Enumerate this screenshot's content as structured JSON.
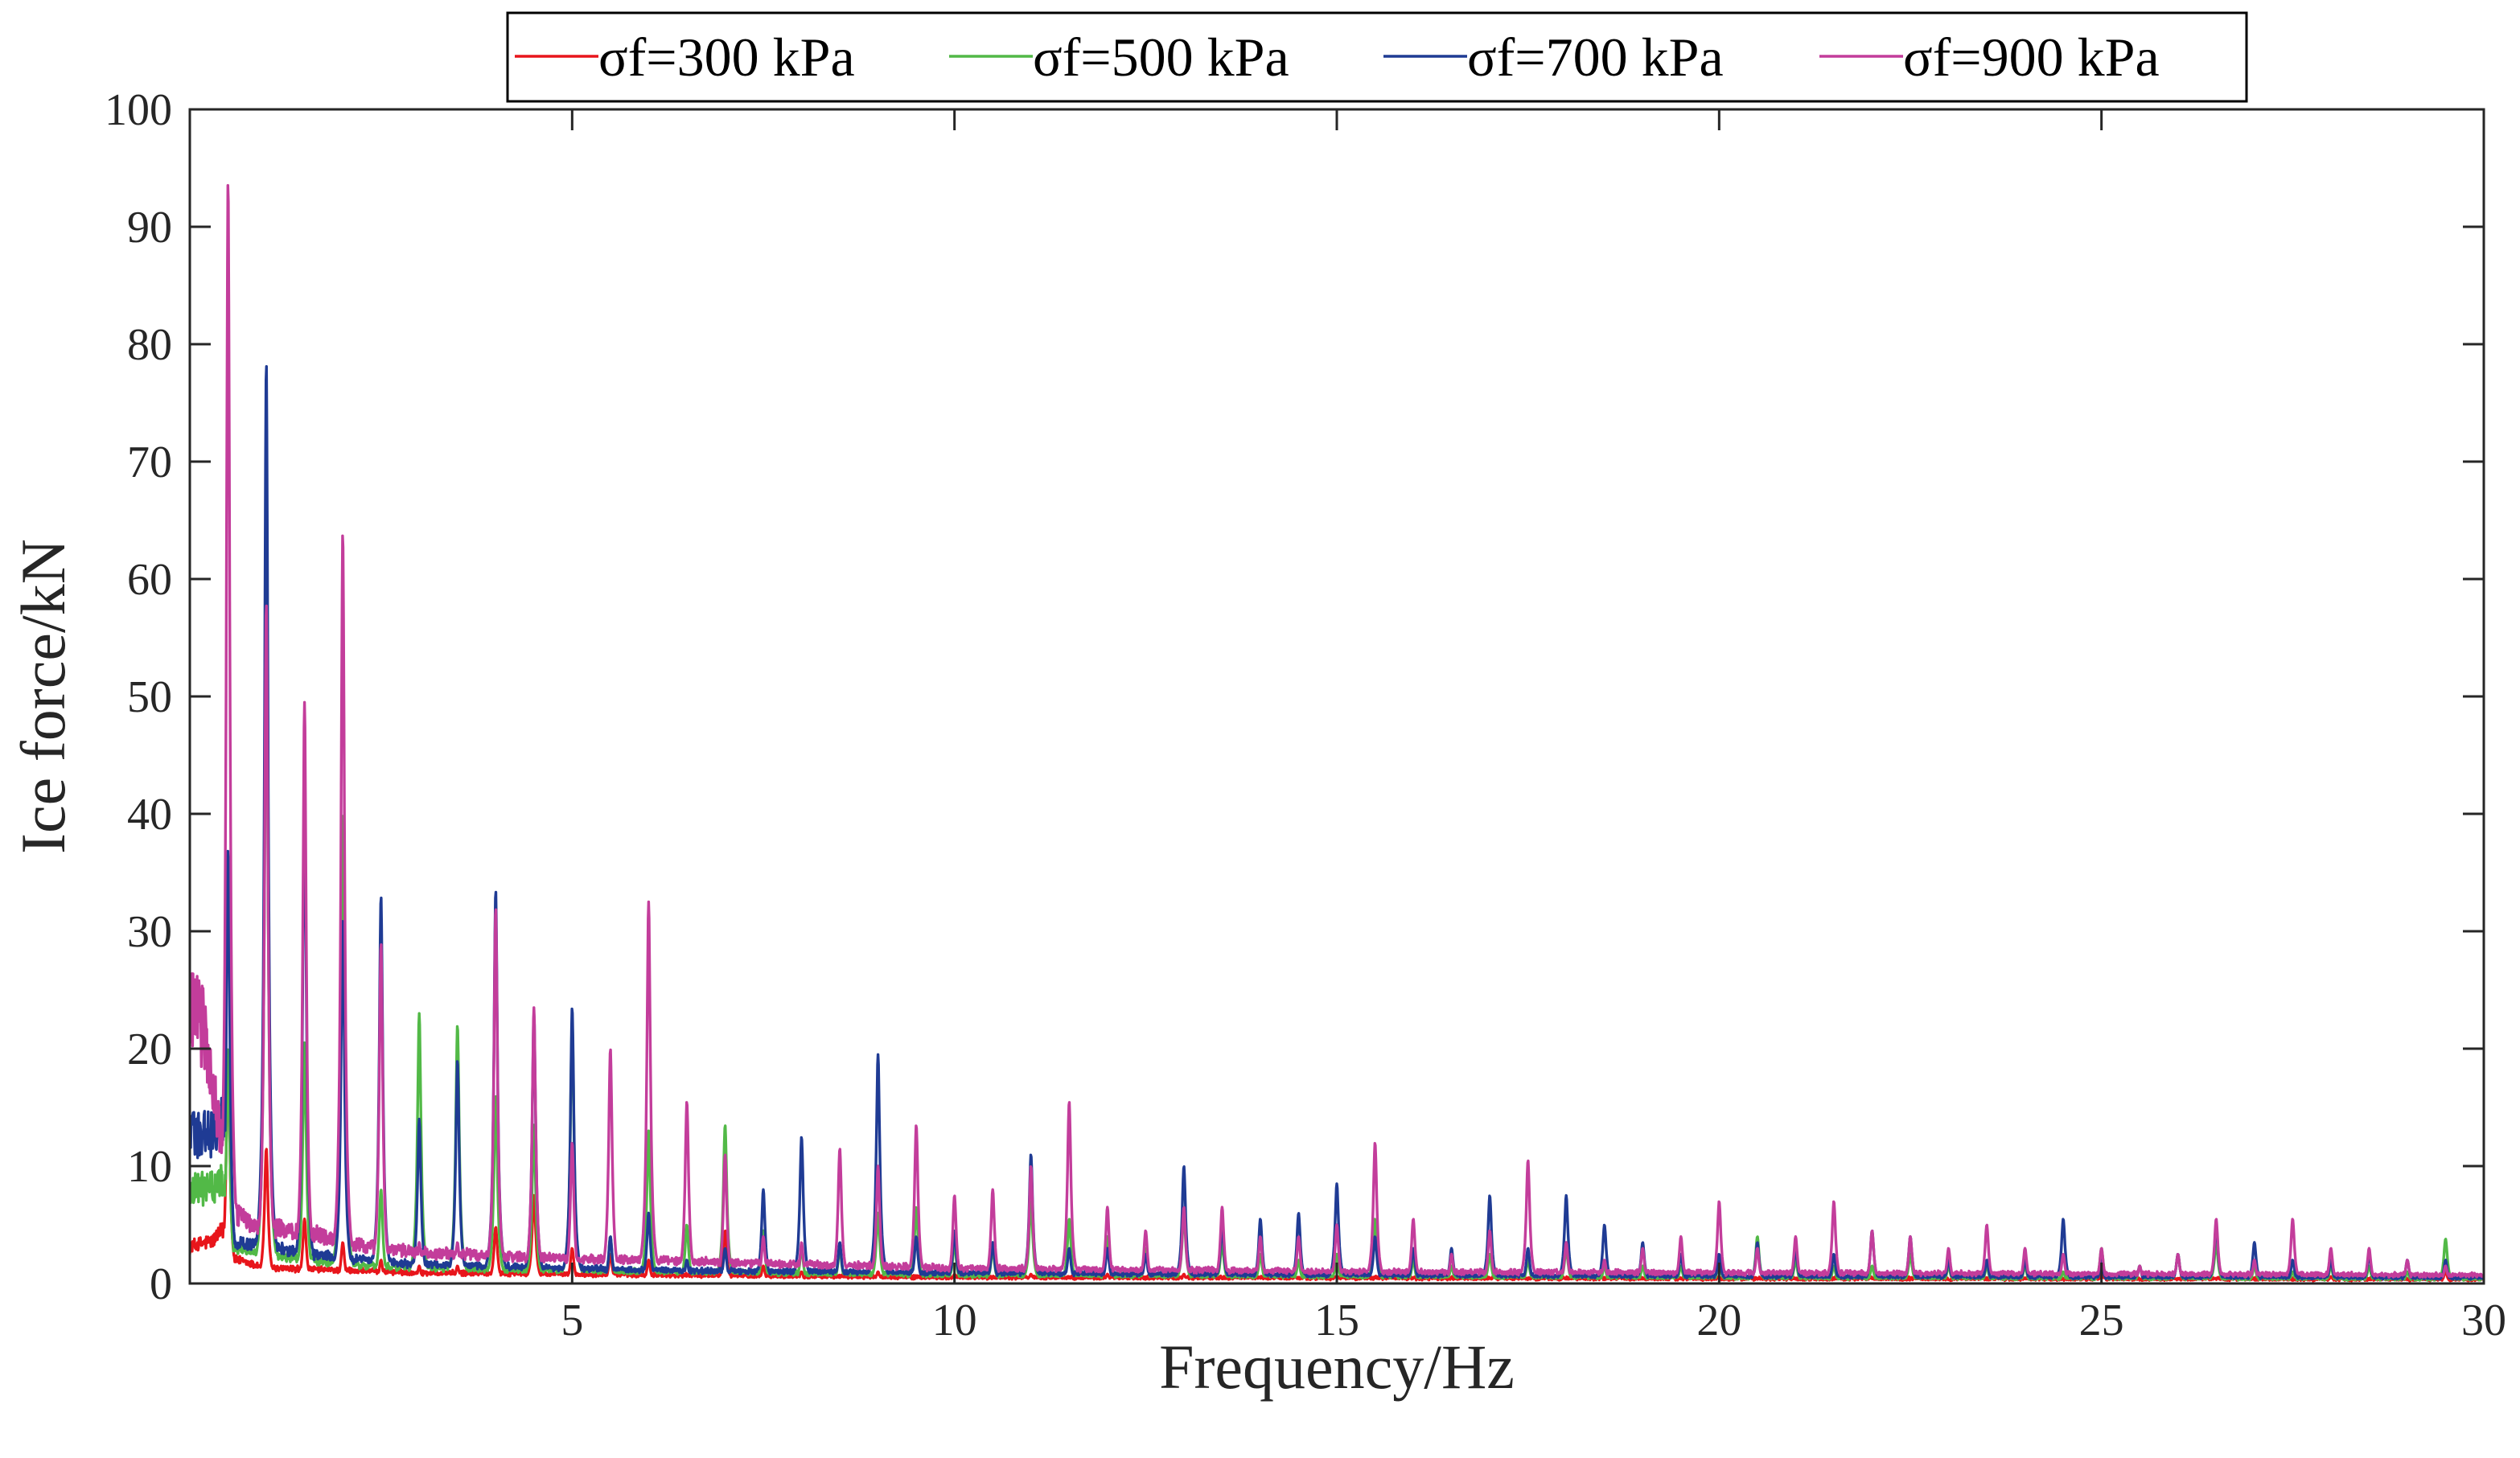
{
  "chart_data": {
    "type": "line",
    "title": "",
    "xlabel": "Frequency/Hz",
    "ylabel": "Ice  force/kN",
    "xlim": [
      0,
      30
    ],
    "ylim": [
      0,
      100
    ],
    "x_ticks": [
      5,
      10,
      15,
      20,
      25,
      30
    ],
    "y_ticks": [
      0,
      10,
      20,
      30,
      40,
      50,
      60,
      70,
      80,
      90,
      100
    ],
    "grid": false,
    "legend_position": "top-center",
    "harmonic_spacing_hz": 0.5,
    "series": [
      {
        "name": "σf=300 kPa",
        "color": "#e8151b",
        "baseline": [
          [
            0,
            3
          ],
          [
            0.3,
            3.5
          ],
          [
            0.45,
            4.5
          ],
          [
            0.55,
            2
          ],
          [
            1,
            1.2
          ],
          [
            2,
            1
          ],
          [
            3,
            0.8
          ],
          [
            6,
            0.6
          ],
          [
            10,
            0.4
          ],
          [
            20,
            0.3
          ],
          [
            30,
            0.25
          ]
        ],
        "peaks": [
          [
            0.5,
            20
          ],
          [
            1,
            11.5
          ],
          [
            1.5,
            5.5
          ],
          [
            2,
            3.5
          ],
          [
            2.5,
            2
          ],
          [
            3,
            1.5
          ],
          [
            3.5,
            1.5
          ],
          [
            4,
            4.8
          ],
          [
            4.5,
            7.5
          ],
          [
            5,
            3
          ],
          [
            5.5,
            2.5
          ],
          [
            6,
            2
          ],
          [
            7,
            4.5
          ],
          [
            7.5,
            1.5
          ],
          [
            8,
            1
          ],
          [
            9,
            1
          ],
          [
            10,
            0.8
          ],
          [
            11,
            0.8
          ],
          [
            12,
            0.8
          ],
          [
            13,
            0.8
          ],
          [
            15,
            0.6
          ],
          [
            17,
            0.5
          ],
          [
            20,
            0.5
          ],
          [
            25,
            0.8
          ],
          [
            28,
            0.6
          ],
          [
            29.5,
            1
          ]
        ]
      },
      {
        "name": "σf=500 kPa",
        "color": "#52b947",
        "baseline": [
          [
            0,
            8
          ],
          [
            0.35,
            8
          ],
          [
            0.45,
            9
          ],
          [
            0.55,
            3
          ],
          [
            1,
            2.5
          ],
          [
            2,
            1.5
          ],
          [
            3,
            1.2
          ],
          [
            6,
            0.9
          ],
          [
            10,
            0.6
          ],
          [
            15,
            0.5
          ],
          [
            20,
            0.4
          ],
          [
            30,
            0.3
          ]
        ],
        "peaks": [
          [
            0.5,
            20
          ],
          [
            1,
            58
          ],
          [
            1.5,
            20.5
          ],
          [
            2,
            40
          ],
          [
            2.5,
            8
          ],
          [
            3,
            23
          ],
          [
            3.5,
            22
          ],
          [
            4,
            16
          ],
          [
            4.5,
            13.5
          ],
          [
            5,
            22.5
          ],
          [
            5.5,
            4
          ],
          [
            6,
            13
          ],
          [
            6.5,
            5
          ],
          [
            7,
            13.5
          ],
          [
            7.5,
            4.5
          ],
          [
            8,
            3
          ],
          [
            8.5,
            3
          ],
          [
            9,
            6
          ],
          [
            9.5,
            6.5
          ],
          [
            10,
            3.5
          ],
          [
            10.5,
            3
          ],
          [
            11,
            7
          ],
          [
            11.5,
            5.5
          ],
          [
            12,
            4
          ],
          [
            12.5,
            3
          ],
          [
            13,
            6
          ],
          [
            13.5,
            3.5
          ],
          [
            14,
            2.5
          ],
          [
            14.5,
            2
          ],
          [
            15,
            2.5
          ],
          [
            15.5,
            5.5
          ],
          [
            16,
            2
          ],
          [
            16.5,
            1.5
          ],
          [
            17,
            2.5
          ],
          [
            17.5,
            2
          ],
          [
            18,
            3
          ],
          [
            18.5,
            1.5
          ],
          [
            19,
            1.5
          ],
          [
            19.5,
            1.5
          ],
          [
            20,
            2
          ],
          [
            20.5,
            4
          ],
          [
            21,
            2
          ],
          [
            21.5,
            1.5
          ],
          [
            22,
            1.5
          ],
          [
            22.5,
            2.5
          ],
          [
            23,
            1.5
          ],
          [
            23.5,
            1.5
          ],
          [
            24,
            1.5
          ],
          [
            24.5,
            1
          ],
          [
            25,
            3
          ],
          [
            25.5,
            1.5
          ],
          [
            26,
            2.5
          ],
          [
            26.5,
            3.5
          ],
          [
            27,
            1.5
          ],
          [
            27.5,
            1
          ],
          [
            28,
            1.5
          ],
          [
            28.5,
            1.5
          ],
          [
            29,
            1
          ],
          [
            29.5,
            3.8
          ]
        ]
      },
      {
        "name": "σf=700 kPa",
        "color": "#1f3b94",
        "baseline": [
          [
            0,
            13
          ],
          [
            0.2,
            12.5
          ],
          [
            0.35,
            13
          ],
          [
            0.45,
            14
          ],
          [
            0.55,
            3.5
          ],
          [
            1,
            3
          ],
          [
            2,
            2
          ],
          [
            3,
            1.5
          ],
          [
            6,
            1
          ],
          [
            10,
            0.8
          ],
          [
            15,
            0.6
          ],
          [
            20,
            0.5
          ],
          [
            30,
            0.4
          ]
        ],
        "peaks": [
          [
            0.5,
            37
          ],
          [
            1,
            78.5
          ],
          [
            1.5,
            43
          ],
          [
            2,
            31
          ],
          [
            2.5,
            33
          ],
          [
            3,
            14
          ],
          [
            3.5,
            19
          ],
          [
            4,
            33.5
          ],
          [
            4.5,
            23
          ],
          [
            5,
            23.5
          ],
          [
            5.5,
            4
          ],
          [
            6,
            6
          ],
          [
            6.5,
            2
          ],
          [
            7,
            3
          ],
          [
            7.5,
            8
          ],
          [
            8,
            12.5
          ],
          [
            8.5,
            3.5
          ],
          [
            9,
            19.5
          ],
          [
            9.5,
            4
          ],
          [
            10,
            4.5
          ],
          [
            10.5,
            3.5
          ],
          [
            11,
            11
          ],
          [
            11.5,
            3
          ],
          [
            12,
            3
          ],
          [
            12.5,
            2.5
          ],
          [
            13,
            10
          ],
          [
            13.5,
            5
          ],
          [
            14,
            5.5
          ],
          [
            14.5,
            6
          ],
          [
            15,
            8.5
          ],
          [
            15.5,
            4
          ],
          [
            16,
            3
          ],
          [
            16.5,
            3
          ],
          [
            17,
            7.5
          ],
          [
            17.5,
            3
          ],
          [
            18,
            7.5
          ],
          [
            18.5,
            5
          ],
          [
            19,
            3.5
          ],
          [
            19.5,
            2.5
          ],
          [
            20,
            2.5
          ],
          [
            20.5,
            3.5
          ],
          [
            21,
            3
          ],
          [
            21.5,
            2.5
          ],
          [
            22,
            4.5
          ],
          [
            22.5,
            4
          ],
          [
            23,
            2
          ],
          [
            23.5,
            2
          ],
          [
            24,
            2
          ],
          [
            24.5,
            5.5
          ],
          [
            25,
            2
          ],
          [
            25.5,
            1.5
          ],
          [
            26,
            2.5
          ],
          [
            26.5,
            5
          ],
          [
            27,
            3.5
          ],
          [
            27.5,
            2
          ],
          [
            28,
            2
          ],
          [
            28.5,
            2.5
          ],
          [
            29,
            2
          ],
          [
            29.5,
            2
          ]
        ]
      },
      {
        "name": "σf=900 kPa",
        "color": "#c33d9b",
        "baseline": [
          [
            0,
            23
          ],
          [
            0.12,
            22.5
          ],
          [
            0.25,
            20
          ],
          [
            0.35,
            14
          ],
          [
            0.45,
            12
          ],
          [
            0.55,
            6
          ],
          [
            0.8,
            5
          ],
          [
            1.2,
            4.5
          ],
          [
            1.7,
            4
          ],
          [
            2.3,
            3
          ],
          [
            3,
            2.5
          ],
          [
            5,
            2
          ],
          [
            8,
            1.5
          ],
          [
            10,
            1.2
          ],
          [
            15,
            0.9
          ],
          [
            20,
            0.8
          ],
          [
            25,
            0.7
          ],
          [
            30,
            0.6
          ]
        ],
        "peaks": [
          [
            0.5,
            94
          ],
          [
            1,
            58
          ],
          [
            1.5,
            49.5
          ],
          [
            2,
            64
          ],
          [
            2.5,
            29
          ],
          [
            3,
            3.5
          ],
          [
            3.5,
            3.5
          ],
          [
            4,
            32
          ],
          [
            4.5,
            23.5
          ],
          [
            5,
            12
          ],
          [
            5.5,
            20
          ],
          [
            6,
            32.5
          ],
          [
            6.5,
            15.5
          ],
          [
            7,
            11
          ],
          [
            7.5,
            4
          ],
          [
            8,
            3.5
          ],
          [
            8.5,
            11.5
          ],
          [
            9,
            10
          ],
          [
            9.5,
            13.5
          ],
          [
            10,
            7.5
          ],
          [
            10.5,
            8
          ],
          [
            11,
            10
          ],
          [
            11.5,
            15.5
          ],
          [
            12,
            6.5
          ],
          [
            12.5,
            4.5
          ],
          [
            13,
            6.5
          ],
          [
            13.5,
            6.5
          ],
          [
            14,
            4
          ],
          [
            14.5,
            4
          ],
          [
            15,
            5
          ],
          [
            15.5,
            12
          ],
          [
            16,
            5.5
          ],
          [
            16.5,
            2.5
          ],
          [
            17,
            4.5
          ],
          [
            17.5,
            10.5
          ],
          [
            18,
            3.5
          ],
          [
            18.5,
            2
          ],
          [
            19,
            3
          ],
          [
            19.5,
            4
          ],
          [
            20,
            7
          ],
          [
            20.5,
            3
          ],
          [
            21,
            4
          ],
          [
            21.5,
            7
          ],
          [
            22,
            4.5
          ],
          [
            22.5,
            4
          ],
          [
            23,
            3
          ],
          [
            23.5,
            5
          ],
          [
            24,
            3
          ],
          [
            24.5,
            2.5
          ],
          [
            25,
            3
          ],
          [
            25.5,
            1.5
          ],
          [
            26,
            2.5
          ],
          [
            26.5,
            5.5
          ],
          [
            27,
            2
          ],
          [
            27.5,
            5.5
          ],
          [
            28,
            3
          ],
          [
            28.5,
            3
          ],
          [
            29,
            2
          ],
          [
            29.5,
            1.5
          ]
        ]
      }
    ]
  }
}
